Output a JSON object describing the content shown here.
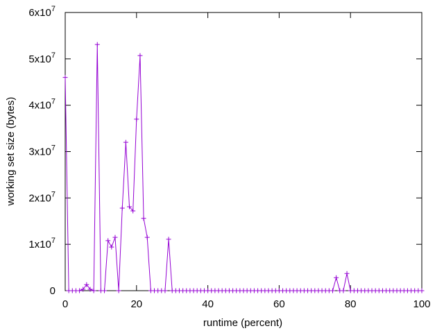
{
  "chart_data": {
    "type": "line",
    "xlabel": "runtime (percent)",
    "ylabel": "working set size (bytes)",
    "color": "#9400d3",
    "markers": true,
    "grid": false,
    "x": [
      0,
      1,
      2,
      3,
      4,
      5,
      6,
      7,
      8,
      9,
      10,
      11,
      12,
      13,
      14,
      15,
      16,
      17,
      18,
      19,
      20,
      21,
      22,
      23,
      24,
      25,
      26,
      27,
      28,
      29,
      30,
      31,
      32,
      33,
      34,
      35,
      36,
      37,
      38,
      39,
      40,
      41,
      42,
      43,
      44,
      45,
      46,
      47,
      48,
      49,
      50,
      51,
      52,
      53,
      54,
      55,
      56,
      57,
      58,
      59,
      60,
      61,
      62,
      63,
      64,
      65,
      66,
      67,
      68,
      69,
      70,
      71,
      72,
      73,
      74,
      75,
      76,
      77,
      78,
      79,
      80,
      81,
      82,
      83,
      84,
      85,
      86,
      87,
      88,
      89,
      90,
      91,
      92,
      93,
      94,
      95,
      96,
      97,
      98,
      99,
      100
    ],
    "values": [
      46000000,
      0,
      0,
      0,
      0,
      300000,
      1300000,
      300000,
      0,
      53100000,
      0,
      0,
      10800000,
      9400000,
      11500000,
      0,
      17800000,
      32000000,
      18100000,
      17200000,
      37000000,
      50700000,
      15600000,
      11500000,
      0,
      0,
      0,
      0,
      0,
      11100000,
      0,
      0,
      0,
      0,
      0,
      0,
      0,
      0,
      0,
      0,
      0,
      0,
      0,
      0,
      0,
      0,
      0,
      0,
      0,
      0,
      0,
      0,
      0,
      0,
      0,
      0,
      0,
      0,
      0,
      0,
      0,
      0,
      0,
      0,
      0,
      0,
      0,
      0,
      0,
      0,
      0,
      0,
      0,
      0,
      0,
      0,
      2800000,
      0,
      0,
      3700000,
      0,
      0,
      0,
      0,
      0,
      0,
      0,
      0,
      0,
      0,
      0,
      0,
      0,
      0,
      0,
      0,
      0,
      0,
      0,
      0,
      0
    ],
    "xlim": [
      0,
      100
    ],
    "xticks": [
      0,
      20,
      40,
      60,
      80,
      100
    ],
    "ylim": [
      0,
      60000000
    ],
    "yticks": [
      0,
      {
        "value": 10000000,
        "label": "1x10",
        "superscript": "7"
      },
      {
        "value": 20000000,
        "label": "2x10",
        "superscript": "7"
      },
      {
        "value": 30000000,
        "label": "3x10",
        "superscript": "7"
      },
      {
        "value": 40000000,
        "label": "4x10",
        "superscript": "7"
      },
      {
        "value": 50000000,
        "label": "5x10",
        "superscript": "7"
      },
      {
        "value": 60000000,
        "label": "6x10",
        "superscript": "7"
      }
    ]
  }
}
